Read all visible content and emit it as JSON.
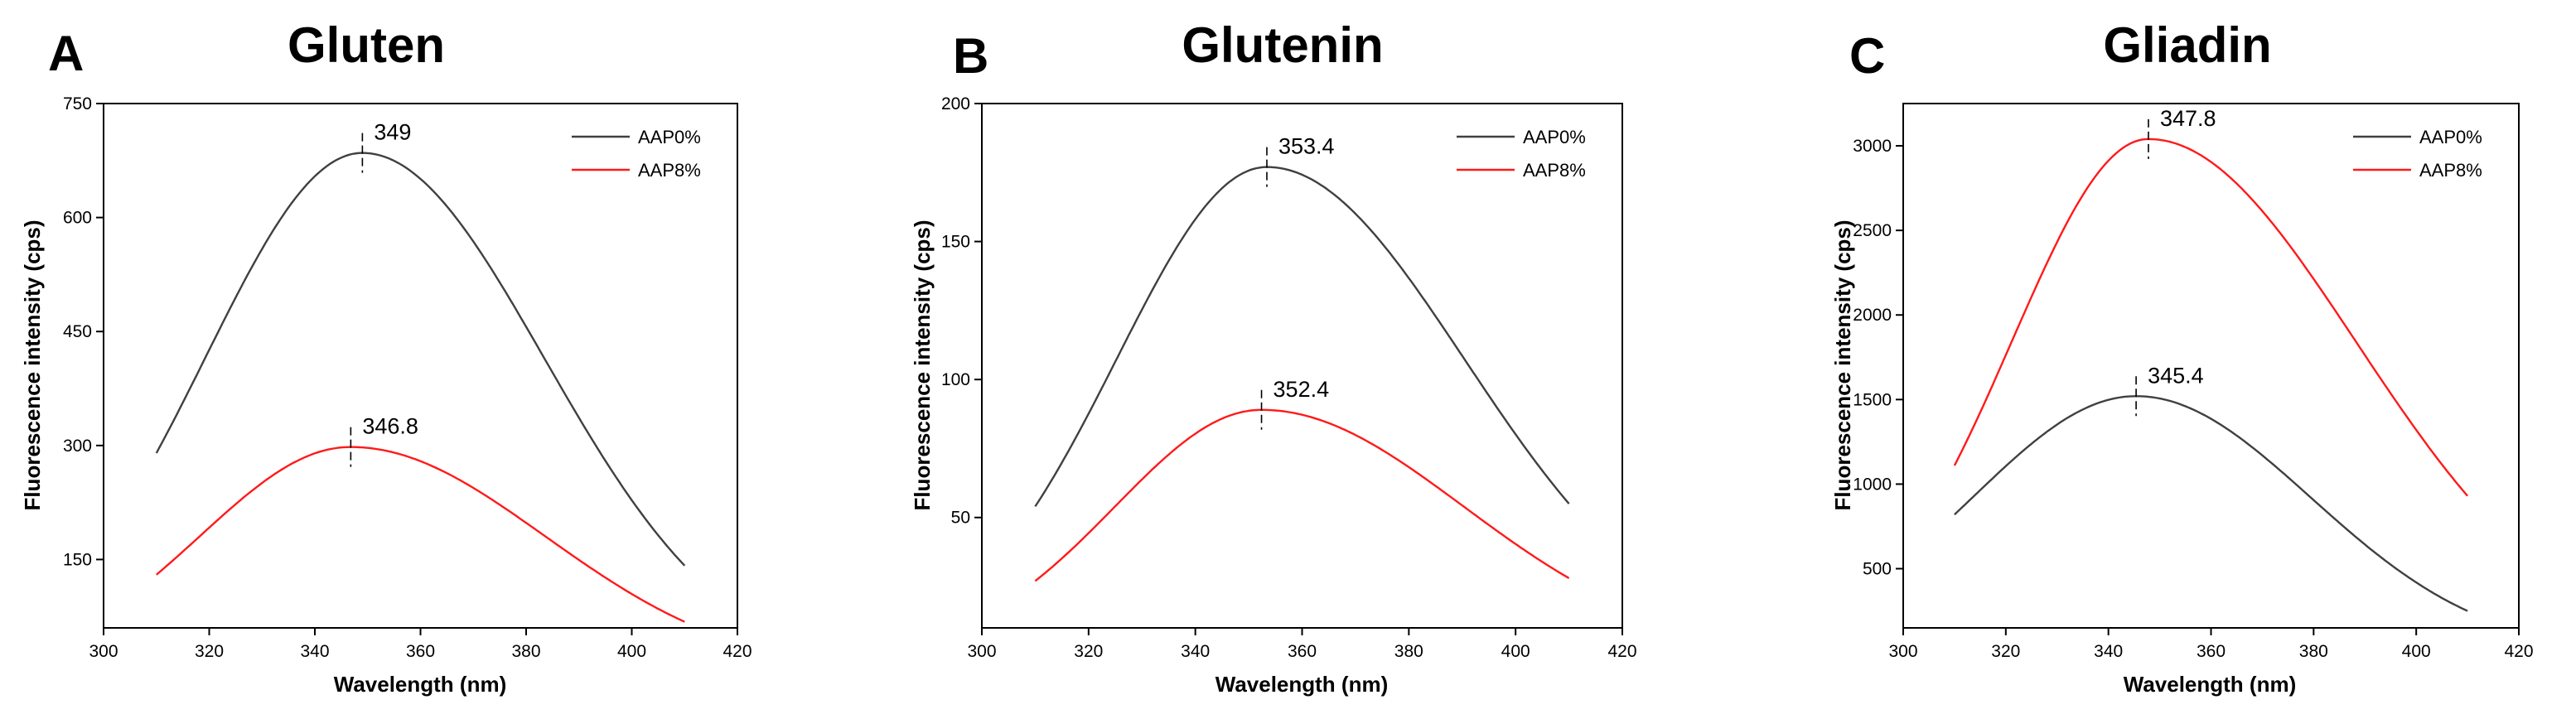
{
  "chart_data": [
    {
      "type": "line",
      "panel_letter": "A",
      "title": "Gluten",
      "xlabel": "Wavelength (nm)",
      "ylabel": "Fluorescence intensity (cps)",
      "xlim": [
        300,
        420
      ],
      "ylim": [
        60,
        750
      ],
      "xticks": [
        300,
        320,
        340,
        360,
        380,
        400,
        420
      ],
      "yticks": [
        150,
        300,
        450,
        600,
        750
      ],
      "legend_position": "top-right",
      "series": [
        {
          "name": "AAP0%",
          "color": "#404040",
          "x_range": [
            310,
            410
          ],
          "peak_x": 349,
          "peak_y": 685,
          "start_y": 290,
          "end_y": 142,
          "peak_label": "349"
        },
        {
          "name": "AAP8%",
          "color": "#ff1a1a",
          "x_range": [
            310,
            410
          ],
          "peak_x": 346.8,
          "peak_y": 298,
          "start_y": 130,
          "end_y": 68,
          "peak_label": "346.8"
        }
      ]
    },
    {
      "type": "line",
      "panel_letter": "B",
      "title": "Glutenin",
      "xlabel": "Wavelength (nm)",
      "ylabel": "Fluorescence intensity (cps)",
      "xlim": [
        300,
        420
      ],
      "ylim": [
        10,
        200
      ],
      "xticks": [
        300,
        320,
        340,
        360,
        380,
        400,
        420
      ],
      "yticks": [
        50,
        100,
        150,
        200
      ],
      "legend_position": "top-right",
      "series": [
        {
          "name": "AAP0%",
          "color": "#404040",
          "x_range": [
            310,
            410
          ],
          "peak_x": 353.4,
          "peak_y": 177,
          "start_y": 54,
          "end_y": 55,
          "peak_label": "353.4"
        },
        {
          "name": "AAP8%",
          "color": "#ff1a1a",
          "x_range": [
            310,
            410
          ],
          "peak_x": 352.4,
          "peak_y": 89,
          "start_y": 27,
          "end_y": 28,
          "peak_label": "352.4"
        }
      ]
    },
    {
      "type": "line",
      "panel_letter": "C",
      "title": "Gliadin",
      "xlabel": "Wavelength (nm)",
      "ylabel": "Fluorescence intensity (cps)",
      "xlim": [
        300,
        420
      ],
      "ylim": [
        150,
        3250
      ],
      "xticks": [
        300,
        320,
        340,
        360,
        380,
        400,
        420
      ],
      "yticks": [
        500,
        1000,
        1500,
        2000,
        2500,
        3000
      ],
      "legend_position": "top-right",
      "series": [
        {
          "name": "AAP0%",
          "color": "#404040",
          "x_range": [
            310,
            410
          ],
          "peak_x": 345.4,
          "peak_y": 1520,
          "start_y": 820,
          "end_y": 250,
          "peak_label": "345.4"
        },
        {
          "name": "AAP8%",
          "color": "#ff1a1a",
          "x_range": [
            310,
            410
          ],
          "peak_x": 347.8,
          "peak_y": 3040,
          "start_y": 1110,
          "end_y": 930,
          "peak_label": "347.8"
        }
      ]
    }
  ]
}
